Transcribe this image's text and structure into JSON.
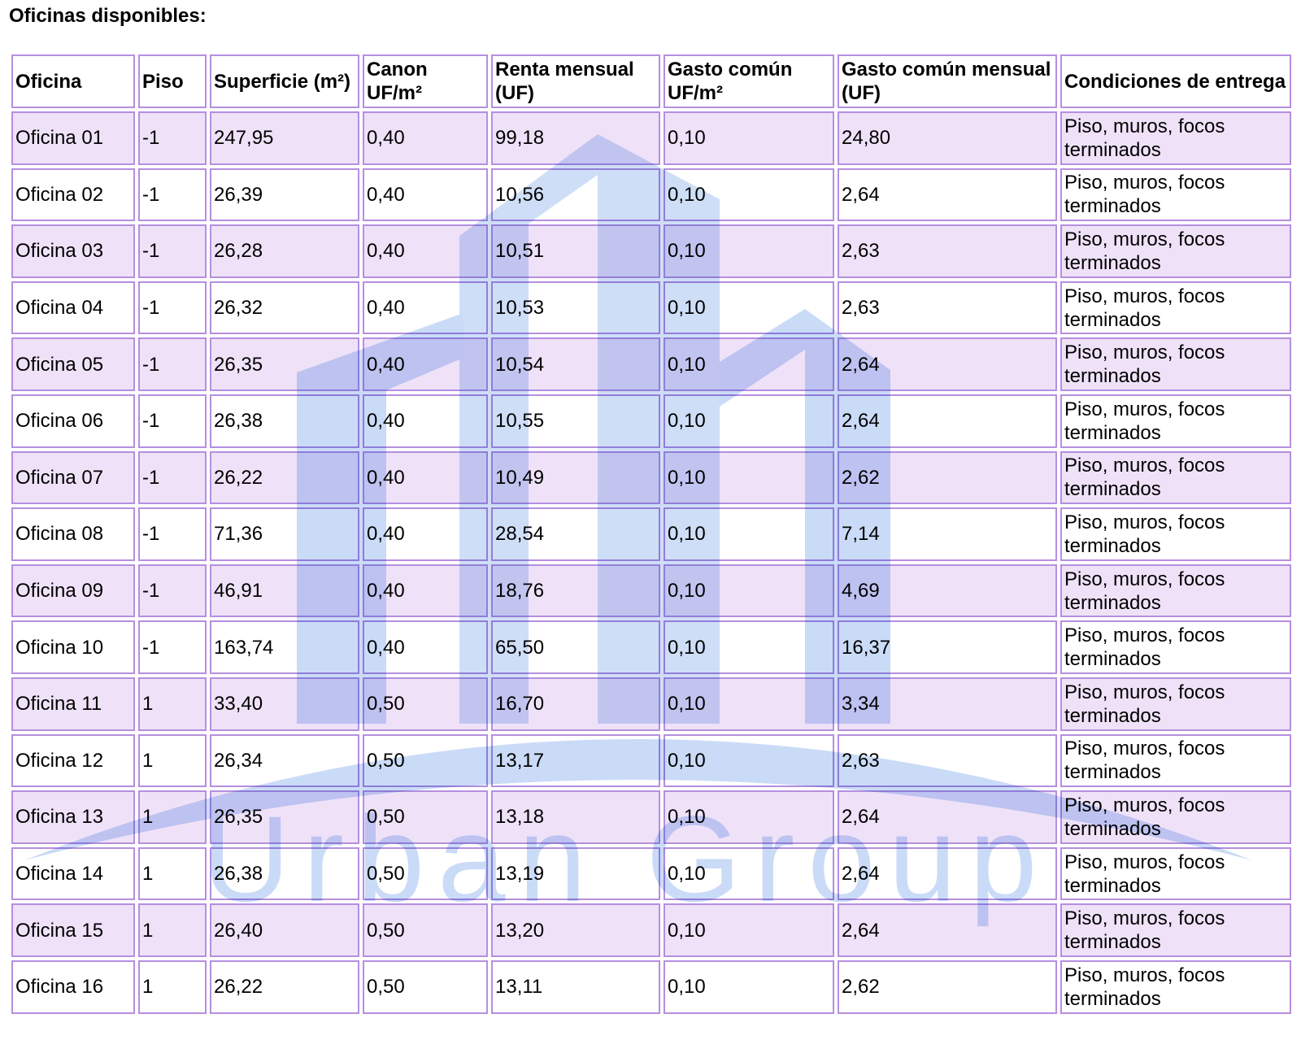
{
  "header": {
    "title": "Oficinas disponibles:"
  },
  "watermark": {
    "text": "Urban Group"
  },
  "table": {
    "headers": [
      "Oficina",
      "Piso",
      "Superficie (m²)",
      "Canon UF/m²",
      "Renta mensual (UF)",
      "Gasto común UF/m²",
      "Gasto común mensual (UF)",
      "Condiciones de entrega"
    ],
    "rows": [
      [
        "Oficina 01",
        "-1",
        "247,95",
        "0,40",
        "99,18",
        "0,10",
        "24,80",
        "Piso, muros, focos terminados"
      ],
      [
        "Oficina 02",
        "-1",
        "26,39",
        "0,40",
        "10,56",
        "0,10",
        "2,64",
        "Piso, muros, focos terminados"
      ],
      [
        "Oficina 03",
        "-1",
        "26,28",
        "0,40",
        "10,51",
        "0,10",
        "2,63",
        "Piso, muros, focos terminados"
      ],
      [
        "Oficina 04",
        "-1",
        "26,32",
        "0,40",
        "10,53",
        "0,10",
        "2,63",
        "Piso, muros, focos terminados"
      ],
      [
        "Oficina 05",
        "-1",
        "26,35",
        "0,40",
        "10,54",
        "0,10",
        "2,64",
        "Piso, muros, focos terminados"
      ],
      [
        "Oficina 06",
        "-1",
        "26,38",
        "0,40",
        "10,55",
        "0,10",
        "2,64",
        "Piso, muros, focos terminados"
      ],
      [
        "Oficina 07",
        "-1",
        "26,22",
        "0,40",
        "10,49",
        "0,10",
        "2,62",
        "Piso, muros, focos terminados"
      ],
      [
        "Oficina 08",
        "-1",
        "71,36",
        "0,40",
        "28,54",
        "0,10",
        "7,14",
        "Piso, muros, focos terminados"
      ],
      [
        "Oficina 09",
        "-1",
        "46,91",
        "0,40",
        "18,76",
        "0,10",
        "4,69",
        "Piso, muros, focos terminados"
      ],
      [
        "Oficina 10",
        "-1",
        "163,74",
        "0,40",
        "65,50",
        "0,10",
        "16,37",
        "Piso, muros, focos terminados"
      ],
      [
        "Oficina 11",
        "1",
        "33,40",
        "0,50",
        "16,70",
        "0,10",
        "3,34",
        "Piso, muros, focos terminados"
      ],
      [
        "Oficina 12",
        "1",
        "26,34",
        "0,50",
        "13,17",
        "0,10",
        "2,63",
        "Piso, muros, focos terminados"
      ],
      [
        "Oficina 13",
        "1",
        "26,35",
        "0,50",
        "13,18",
        "0,10",
        "2,64",
        "Piso, muros, focos terminados"
      ],
      [
        "Oficina 14",
        "1",
        "26,38",
        "0,50",
        "13,19",
        "0,10",
        "2,64",
        "Piso, muros, focos terminados"
      ],
      [
        "Oficina 15",
        "1",
        "26,40",
        "0,50",
        "13,20",
        "0,10",
        "2,64",
        "Piso, muros, focos terminados"
      ],
      [
        "Oficina 16",
        "1",
        "26,22",
        "0,50",
        "13,11",
        "0,10",
        "2,62",
        "Piso, muros, focos terminados"
      ]
    ]
  }
}
